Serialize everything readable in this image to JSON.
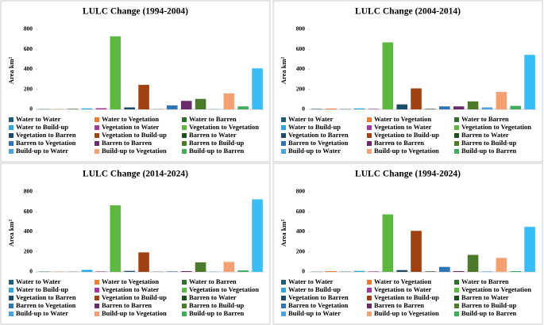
{
  "chart_data": [
    {
      "type": "bar",
      "title": "LULC Change (1994-2004)",
      "ylabel": "Area km²",
      "categories": [
        "Water to Water",
        "Water to Vegetation",
        "Water to Barren",
        "Water to Build-up",
        "Vegetation to Water",
        "Vegetation to Vegetation",
        "Vegetation to Barren",
        "Vegetation to Build-up",
        "Barren to Water",
        "Barren to Vegetation",
        "Barren to Barren",
        "Barren to Build-up",
        "Build-up to Water",
        "Build-up to Vegetation",
        "Build-up to Barren",
        null
      ],
      "colors": [
        "#1f5f7a",
        "#ed7d31",
        "#2f6f2f",
        "#29a9e0",
        "#a03aa0",
        "#5db840",
        "#1a4b6b",
        "#a0410f",
        "#1e4d1e",
        "#2e75b6",
        "#6b2a6b",
        "#4a7a2a",
        "#4aa3df",
        "#f4a073",
        "#3fae5a",
        "#38bdf8"
      ],
      "values": [
        3,
        3,
        5,
        10,
        12,
        730,
        20,
        245,
        2,
        40,
        85,
        105,
        3,
        160,
        30,
        410
      ],
      "ylim": [
        0,
        800
      ],
      "yticks": [
        0,
        200,
        400,
        600,
        800
      ]
    },
    {
      "type": "bar",
      "title": "LULC Change (2004-2014)",
      "ylabel": "Area km²",
      "categories": [
        "Water to Water",
        "Water to Vegetation",
        "Water to Barren",
        "Water to Build-up",
        "Vegetation to Water",
        "Vegetation to Vegetation",
        "Vegetation to Barren",
        "Vegetation to Build-up",
        "Barren to Water",
        "Barren to Vegetation",
        "Barren to Barren",
        "Barren to Build-up",
        "Build-up to Water",
        "Build-up to Vegetation",
        "Build-up to Barren",
        null
      ],
      "colors": [
        "#1f5f7a",
        "#ed7d31",
        "#2f6f2f",
        "#29a9e0",
        "#a03aa0",
        "#5db840",
        "#1a4b6b",
        "#a0410f",
        "#1e4d1e",
        "#2e75b6",
        "#6b2a6b",
        "#4a7a2a",
        "#4aa3df",
        "#f4a073",
        "#3fae5a",
        "#38bdf8"
      ],
      "values": [
        5,
        8,
        3,
        10,
        5,
        670,
        50,
        210,
        5,
        30,
        30,
        80,
        20,
        175,
        35,
        545
      ],
      "ylim": [
        0,
        800
      ],
      "yticks": [
        0,
        200,
        400,
        600,
        800
      ]
    },
    {
      "type": "bar",
      "title": "LULC Change (2014-2024)",
      "ylabel": "Area km²",
      "categories": [
        "Water to Water",
        "Water to Vegetation",
        "Water to Barren",
        "Water to Build-up",
        "Vegetation to Water",
        "Vegetation to Vegetation",
        "Vegetation to Barren",
        "Vegetation to Build-up",
        "Barren to Water",
        "Barren to Vegetation",
        "Barren to Barren",
        "Barren to Build-up",
        "Build-up to Water",
        "Build-up to Vegetation",
        "Build-up to Barren",
        null
      ],
      "colors": [
        "#1f5f7a",
        "#ed7d31",
        "#2f6f2f",
        "#29a9e0",
        "#a03aa0",
        "#5db840",
        "#1a4b6b",
        "#a0410f",
        "#1e4d1e",
        "#2e75b6",
        "#6b2a6b",
        "#4a7a2a",
        "#4aa3df",
        "#f4a073",
        "#3fae5a",
        "#38bdf8"
      ],
      "values": [
        3,
        3,
        2,
        20,
        5,
        665,
        10,
        195,
        2,
        5,
        8,
        95,
        3,
        100,
        15,
        725
      ],
      "ylim": [
        0,
        800
      ],
      "yticks": [
        0,
        200,
        400,
        600,
        800
      ]
    },
    {
      "type": "bar",
      "title": "LULC Change (1994-2024)",
      "ylabel": "Area km²",
      "categories": [
        "Water to Water",
        "Water to Vegetation",
        "Water to Barren",
        "Water to Build-up",
        "Vegetation to Water",
        "Vegetation to Vegetation",
        "Vegetation to Barren",
        "Vegetation to Build-up",
        "Barren to Water",
        "Barren to Vegetation",
        "Barren to Barren",
        "Barren to Build-up",
        "Build-up to Water",
        "Build-up to Vegetation",
        "Build-up to Barren",
        null
      ],
      "colors": [
        "#1f5f7a",
        "#ed7d31",
        "#2f6f2f",
        "#29a9e0",
        "#a03aa0",
        "#5db840",
        "#1a4b6b",
        "#a0410f",
        "#1e4d1e",
        "#2e75b6",
        "#6b2a6b",
        "#4a7a2a",
        "#4aa3df",
        "#f4a073",
        "#3fae5a",
        "#38bdf8"
      ],
      "values": [
        2,
        8,
        3,
        10,
        5,
        575,
        18,
        410,
        5,
        50,
        8,
        170,
        5,
        140,
        8,
        450
      ],
      "ylim": [
        0,
        800
      ],
      "yticks": [
        0,
        200,
        400,
        600,
        800
      ]
    }
  ]
}
